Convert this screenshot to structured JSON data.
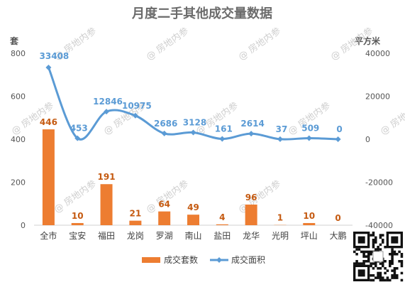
{
  "chart_data": {
    "type": "bar+line",
    "title": "月度二手其他成交量数据",
    "y_left_unit": "套",
    "y_right_unit": "平方米",
    "y_left_lim": [
      0,
      800
    ],
    "y_left_ticks": [
      0,
      200,
      400,
      600,
      800
    ],
    "y_right_lim": [
      -40000,
      40000
    ],
    "y_right_ticks": [
      -40000,
      -20000,
      0,
      20000,
      40000
    ],
    "categories": [
      "全市",
      "宝安",
      "福田",
      "龙岗",
      "罗湖",
      "南山",
      "盐田",
      "龙华",
      "光明",
      "坪山",
      "大鹏"
    ],
    "series": [
      {
        "name": "成交套数",
        "type": "bar",
        "axis": "left",
        "color": "#ed7d31",
        "values": [
          446,
          10,
          191,
          21,
          64,
          49,
          4,
          96,
          1,
          10,
          0
        ]
      },
      {
        "name": "成交面积",
        "type": "line",
        "axis": "right",
        "color": "#5b9bd5",
        "values": [
          33408,
          453,
          12846,
          10975,
          2686,
          3128,
          161,
          2614,
          37,
          509,
          0
        ]
      }
    ],
    "legend_position": "bottom",
    "grid": false
  },
  "watermark": {
    "text": "@ 房地内参"
  }
}
